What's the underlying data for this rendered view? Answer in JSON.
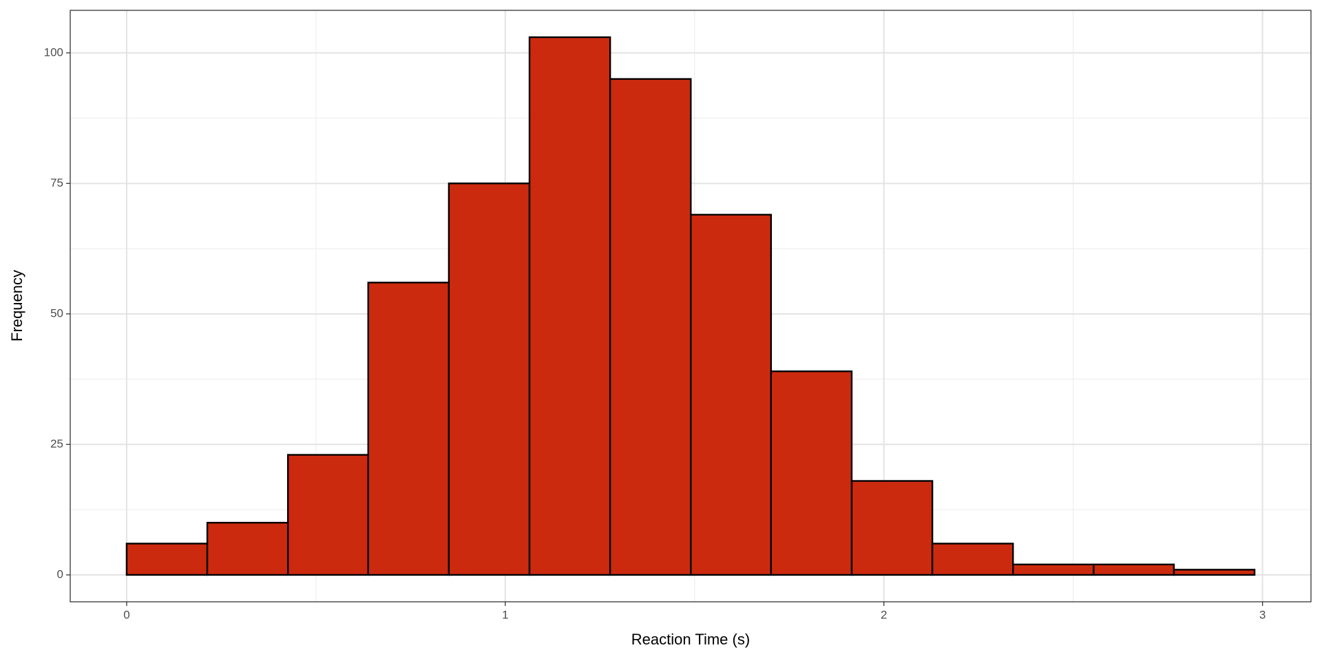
{
  "chart_data": {
    "type": "histogram",
    "xlabel": "Reaction Time (s)",
    "ylabel": "Frequency",
    "bins": [
      0,
      0.213,
      0.426,
      0.638,
      0.851,
      1.064,
      1.277,
      1.49,
      1.702,
      1.915,
      2.128,
      2.341,
      2.554,
      2.766,
      2.979
    ],
    "values": [
      6,
      10,
      23,
      56,
      75,
      103,
      95,
      69,
      39,
      18,
      6,
      2,
      2,
      1
    ],
    "color": "#cc2a0e",
    "edgecolor": "#000000",
    "xlim": [
      -0.149,
      3.128
    ],
    "ylim": [
      -5.15,
      108.15
    ],
    "xticks": [
      0,
      1,
      2,
      3
    ],
    "yticks": [
      0,
      25,
      50,
      75,
      100
    ],
    "minor_xticks": [
      0.5,
      1.5,
      2.5
    ],
    "minor_yticks": [
      12.5,
      37.5,
      62.5,
      87.5
    ],
    "grid": true
  }
}
